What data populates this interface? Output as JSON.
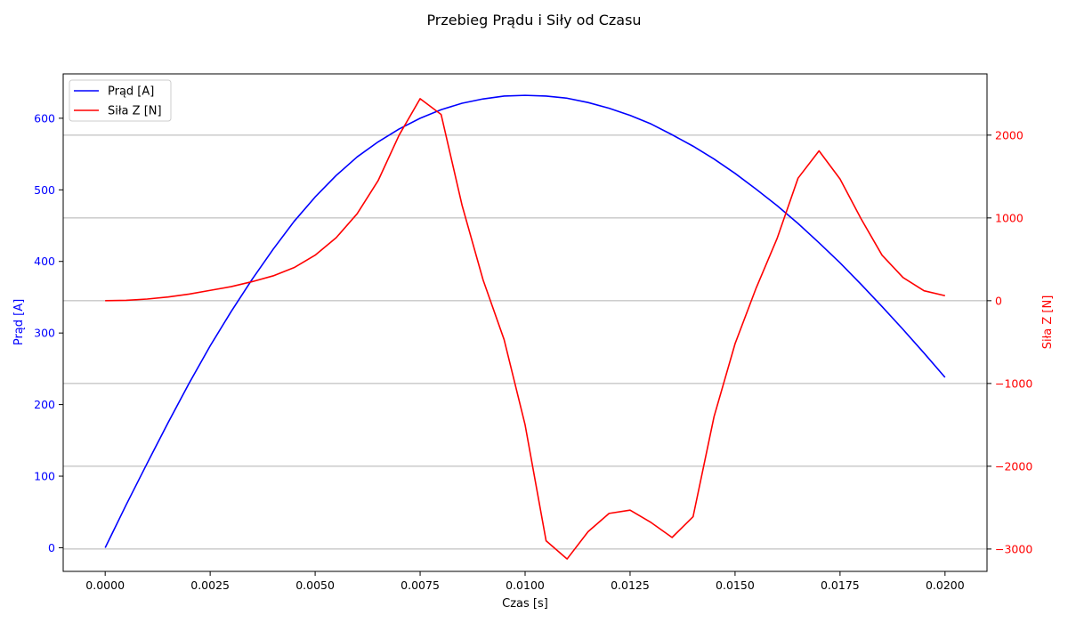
{
  "chart_data": {
    "type": "line",
    "title": "Przebieg Prądu i Siły od Czasu",
    "xlabel": "Czas [s]",
    "ylabel_left": "Prąd [A]",
    "ylabel_right": "Siła Z [N]",
    "xlim": [
      -0.001,
      0.021
    ],
    "ylim_left": [
      -33,
      662
    ],
    "ylim_right": [
      -3270,
      2740
    ],
    "x_ticks": [
      "0.0000",
      "0.0025",
      "0.0050",
      "0.0075",
      "0.0100",
      "0.0125",
      "0.0150",
      "0.0175",
      "0.0200"
    ],
    "y_ticks_left": [
      "0",
      "100",
      "200",
      "300",
      "400",
      "500",
      "600"
    ],
    "y_ticks_right": [
      "−3000",
      "−2000",
      "−1000",
      "0",
      "1000",
      "2000"
    ],
    "grid": "horizontal (right axis)",
    "legend_position": "top-left",
    "x": [
      0.0,
      0.0005,
      0.001,
      0.0015,
      0.002,
      0.0025,
      0.003,
      0.0035,
      0.004,
      0.0045,
      0.005,
      0.0055,
      0.006,
      0.0065,
      0.007,
      0.0075,
      0.008,
      0.0085,
      0.009,
      0.0095,
      0.01,
      0.0105,
      0.011,
      0.0115,
      0.012,
      0.0125,
      0.013,
      0.0135,
      0.014,
      0.0145,
      0.015,
      0.0155,
      0.016,
      0.0165,
      0.017,
      0.0175,
      0.018,
      0.0185,
      0.019,
      0.0195,
      0.02
    ],
    "series": [
      {
        "name": "Prąd [A]",
        "axis": "left",
        "color": "#0000ff",
        "values": [
          0,
          60,
          118,
          175,
          230,
          282,
          330,
          375,
          417,
          456,
          490,
          520,
          546,
          567,
          585,
          600,
          612,
          621,
          627,
          631,
          632,
          631,
          628,
          622,
          614,
          604,
          592,
          577,
          561,
          543,
          523,
          501,
          478,
          453,
          426,
          398,
          368,
          337,
          305,
          272,
          238
        ]
      },
      {
        "name": "Siła Z [N]",
        "axis": "right",
        "color": "#ff0000",
        "values": [
          0,
          5,
          20,
          45,
          80,
          125,
          170,
          230,
          300,
          400,
          550,
          760,
          1050,
          1450,
          2000,
          2440,
          2250,
          1150,
          250,
          -470,
          -1500,
          -2900,
          -3120,
          -2790,
          -2570,
          -2530,
          -2680,
          -2860,
          -2610,
          -1400,
          -520,
          150,
          750,
          1480,
          1810,
          1470,
          990,
          550,
          280,
          120,
          60
        ]
      }
    ]
  }
}
